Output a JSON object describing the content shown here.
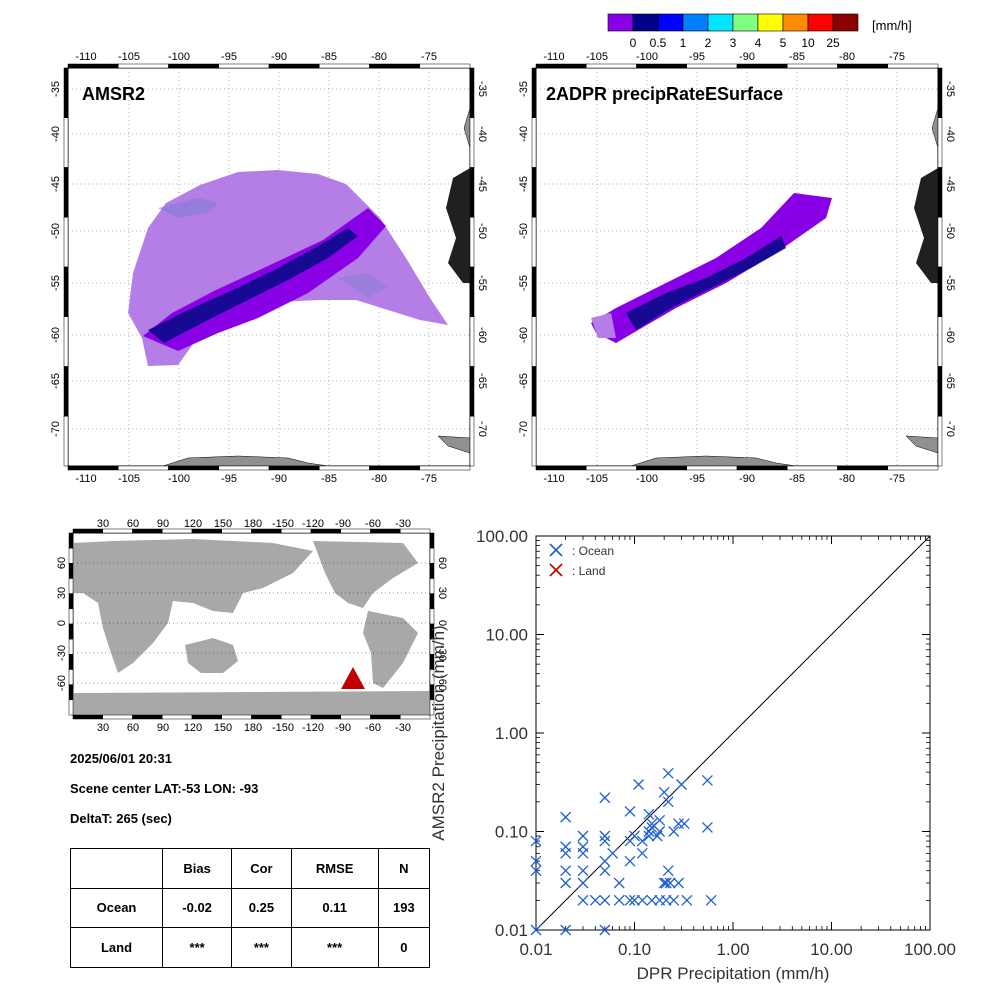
{
  "colorbar": {
    "unit": "[mm/h]",
    "tick_labels": [
      "0",
      "0.5",
      "1",
      "2",
      "3",
      "4",
      "5",
      "10",
      "25"
    ],
    "colors": [
      "#8a00e6",
      "#00008b",
      "#0000ff",
      "#0080ff",
      "#00e6ff",
      "#80ff80",
      "#ffff00",
      "#ff8c00",
      "#ff0000",
      "#8b0000"
    ]
  },
  "map_left": {
    "title": "AMSR2",
    "lon_ticks": [
      "-110",
      "-105",
      "-100",
      "-95",
      "-90",
      "-85",
      "-80",
      "-75"
    ],
    "lat_ticks": [
      "-35",
      "-40",
      "-45",
      "-50",
      "-55",
      "-60",
      "-65",
      "-70"
    ]
  },
  "map_right": {
    "title": "2ADPR precipRateESurface",
    "lon_ticks": [
      "-110",
      "-105",
      "-100",
      "-95",
      "-90",
      "-85",
      "-80",
      "-75"
    ],
    "lat_ticks": [
      "-35",
      "-40",
      "-45",
      "-50",
      "-55",
      "-60",
      "-65",
      "-70"
    ]
  },
  "world_map": {
    "lon_ticks": [
      "30",
      "60",
      "90",
      "120",
      "150",
      "180",
      "-150",
      "-120",
      "-90",
      "-60",
      "-30"
    ],
    "lat_ticks_left": [
      "60",
      "30",
      "0",
      "-30",
      "-60"
    ],
    "lat_ticks_right": [
      "60",
      "30",
      "0",
      "-30",
      "-60"
    ],
    "marker_color": "#c00000"
  },
  "scene": {
    "datetime": "2025/06/01 20:31",
    "center": "Scene center LAT:-53   LON: -93",
    "delta": "DeltaT:  265 (sec)"
  },
  "stats": {
    "headers": [
      "",
      "Bias",
      "Cor",
      "RMSE",
      "N"
    ],
    "rows": [
      [
        "Ocean",
        "-0.02",
        "0.25",
        "0.11",
        "193"
      ],
      [
        "Land",
        "***",
        "***",
        "***",
        "0"
      ]
    ]
  },
  "chart_data": {
    "type": "scatter",
    "xlabel": "DPR Precipitation (mm/h)",
    "ylabel": "AMSR2 Precipitation (mm/h)",
    "xscale": "log",
    "yscale": "log",
    "xlim": [
      0.01,
      100
    ],
    "ylim": [
      0.01,
      100
    ],
    "tick_labels": [
      "0.01",
      "0.10",
      "1.00",
      "10.00",
      "100.00"
    ],
    "diagonal": true,
    "legend_position": "top-left",
    "series": [
      {
        "name": ": Ocean",
        "color": "#1f5fd0",
        "marker": "x",
        "points": [
          [
            0.01,
            0.08
          ],
          [
            0.01,
            0.05
          ],
          [
            0.01,
            0.04
          ],
          [
            0.01,
            0.01
          ],
          [
            0.02,
            0.14
          ],
          [
            0.02,
            0.07
          ],
          [
            0.02,
            0.06
          ],
          [
            0.02,
            0.04
          ],
          [
            0.02,
            0.03
          ],
          [
            0.02,
            0.01
          ],
          [
            0.03,
            0.09
          ],
          [
            0.03,
            0.07
          ],
          [
            0.03,
            0.06
          ],
          [
            0.03,
            0.04
          ],
          [
            0.03,
            0.03
          ],
          [
            0.03,
            0.02
          ],
          [
            0.04,
            0.02
          ],
          [
            0.05,
            0.22
          ],
          [
            0.05,
            0.09
          ],
          [
            0.05,
            0.08
          ],
          [
            0.05,
            0.05
          ],
          [
            0.05,
            0.04
          ],
          [
            0.05,
            0.02
          ],
          [
            0.05,
            0.01
          ],
          [
            0.06,
            0.06
          ],
          [
            0.07,
            0.03
          ],
          [
            0.07,
            0.02
          ],
          [
            0.09,
            0.16
          ],
          [
            0.09,
            0.08
          ],
          [
            0.09,
            0.05
          ],
          [
            0.09,
            0.02
          ],
          [
            0.1,
            0.09
          ],
          [
            0.1,
            0.02
          ],
          [
            0.11,
            0.3
          ],
          [
            0.12,
            0.08
          ],
          [
            0.12,
            0.06
          ],
          [
            0.12,
            0.02
          ],
          [
            0.14,
            0.15
          ],
          [
            0.14,
            0.1
          ],
          [
            0.14,
            0.09
          ],
          [
            0.15,
            0.12
          ],
          [
            0.15,
            0.11
          ],
          [
            0.15,
            0.02
          ],
          [
            0.17,
            0.09
          ],
          [
            0.18,
            0.13
          ],
          [
            0.18,
            0.1
          ],
          [
            0.18,
            0.02
          ],
          [
            0.2,
            0.25
          ],
          [
            0.2,
            0.03
          ],
          [
            0.21,
            0.03
          ],
          [
            0.21,
            0.02
          ],
          [
            0.22,
            0.39
          ],
          [
            0.22,
            0.2
          ],
          [
            0.22,
            0.04
          ],
          [
            0.23,
            0.03
          ],
          [
            0.25,
            0.1
          ],
          [
            0.25,
            0.02
          ],
          [
            0.28,
            0.12
          ],
          [
            0.28,
            0.03
          ],
          [
            0.3,
            0.3
          ],
          [
            0.32,
            0.12
          ],
          [
            0.34,
            0.02
          ],
          [
            0.55,
            0.33
          ],
          [
            0.55,
            0.11
          ],
          [
            0.6,
            0.02
          ]
        ]
      },
      {
        "name": ": Land",
        "color": "#c00000",
        "marker": "x",
        "points": []
      }
    ]
  }
}
